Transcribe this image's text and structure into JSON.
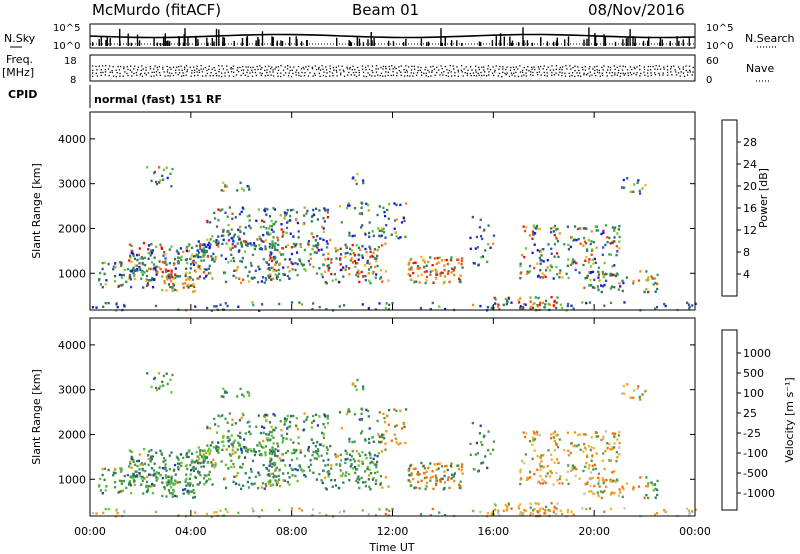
{
  "header": {
    "station": "McMurdo (fitACF)",
    "beam": "Beam 01",
    "date": "08/Nov/2016"
  },
  "side_labels": {
    "nsky": "N.Sky",
    "nsearch": "N.Search",
    "freq": "Freq.",
    "freq_unit": "[MHz]",
    "nave": "Nave",
    "cpid": "CPID"
  },
  "noise_panel": {
    "left_ticks": [
      "10^5",
      "10^0"
    ],
    "right_ticks": [
      "10^5",
      "10^0"
    ]
  },
  "freq_panel": {
    "left_ticks": [
      "18",
      "8"
    ],
    "right_ticks": [
      "60",
      "0"
    ]
  },
  "cpid_panel": {
    "text": "normal (fast) 151 RF"
  },
  "chart_data": [
    {
      "type": "heatmap",
      "name": "power",
      "ylabel": "Slant Range [km]",
      "ylim": [
        180,
        4600
      ],
      "yticks": [
        "1000",
        "2000",
        "3000",
        "4000"
      ],
      "yticks_values": [
        1000,
        2000,
        3000,
        4000
      ],
      "x_range_hours": [
        0,
        24
      ],
      "colorbar": {
        "label": "Power [dB]",
        "range": [
          0,
          32
        ],
        "ticks": [
          "4",
          "8",
          "12",
          "16",
          "20",
          "24",
          "28"
        ],
        "tick_values": [
          4,
          8,
          12,
          16,
          20,
          24,
          28
        ],
        "colors": [
          "#1515e0",
          "#2a50b0",
          "#2f7a5a",
          "#3a9a50",
          "#6cc832",
          "#c8dc28",
          "#f0b41e",
          "#f08c14",
          "#f0500a",
          "#e81010"
        ]
      }
    },
    {
      "type": "heatmap",
      "name": "velocity",
      "ylabel": "Slant Range [km]",
      "ylim": [
        180,
        4600
      ],
      "yticks": [
        "1000",
        "2000",
        "3000",
        "4000"
      ],
      "yticks_values": [
        1000,
        2000,
        3000,
        4000
      ],
      "x_range_hours": [
        0,
        24
      ],
      "colorbar": {
        "label": "Velocity [m s⁻¹]",
        "ticks": [
          "1000",
          "500",
          "100",
          "25",
          "-25",
          "-100",
          "-500",
          "-1000"
        ],
        "colors": [
          "#1e3cb4",
          "#2a5aa0",
          "#2f7a5a",
          "#4a9a48",
          "#5cc832",
          "#c0c0c0",
          "#f0b428",
          "#f09614",
          "#f06c0a",
          "#f03c0a",
          "#e81010"
        ]
      }
    }
  ],
  "x_axis": {
    "ticks": [
      "00:00",
      "04:00",
      "08:00",
      "12:00",
      "16:00",
      "20:00",
      "00:00"
    ],
    "tick_hours": [
      0,
      4,
      8,
      12,
      16,
      20,
      24
    ],
    "label": "Time UT"
  }
}
